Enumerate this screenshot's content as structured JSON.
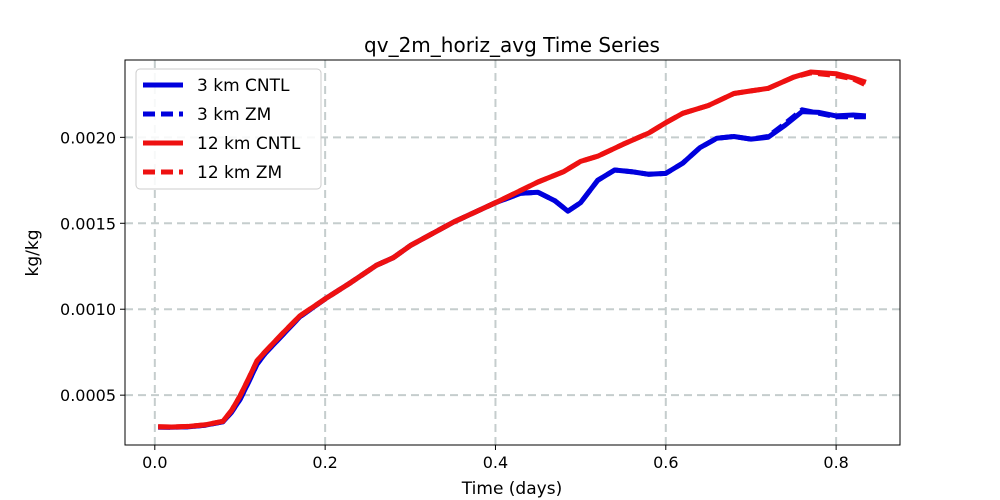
{
  "chart_data": {
    "type": "line",
    "title": "qv_2m_horiz_avg Time Series",
    "xlabel": "Time (days)",
    "ylabel": "kg/kg",
    "xlim": [
      -0.035,
      0.875
    ],
    "ylim": [
      0.00021,
      0.00245
    ],
    "xticks": [
      0.0,
      0.2,
      0.4,
      0.6,
      0.8
    ],
    "xtick_labels": [
      "0.0",
      "0.2",
      "0.4",
      "0.6",
      "0.8"
    ],
    "yticks": [
      0.0005,
      0.001,
      0.0015,
      0.002
    ],
    "ytick_labels": [
      "0.0005",
      "0.0010",
      "0.0015",
      "0.0020"
    ],
    "grid": true,
    "legend_position": "upper-left",
    "series": [
      {
        "name": "3 km CNTL",
        "color": "#0000dd",
        "dash": "solid",
        "x": [
          0.004,
          0.02,
          0.04,
          0.06,
          0.08,
          0.09,
          0.1,
          0.11,
          0.12,
          0.13,
          0.15,
          0.17,
          0.2,
          0.23,
          0.26,
          0.28,
          0.3,
          0.35,
          0.4,
          0.43,
          0.45,
          0.47,
          0.485,
          0.5,
          0.52,
          0.54,
          0.56,
          0.58,
          0.6,
          0.62,
          0.64,
          0.66,
          0.68,
          0.7,
          0.72,
          0.74,
          0.76,
          0.78,
          0.8,
          0.82,
          0.835
        ],
        "y": [
          0.000314,
          0.000313,
          0.000316,
          0.000326,
          0.000345,
          0.0004,
          0.000475,
          0.000575,
          0.00068,
          0.000745,
          0.00085,
          0.000955,
          0.00106,
          0.001155,
          0.001255,
          0.0013,
          0.00137,
          0.001505,
          0.00162,
          0.001675,
          0.00168,
          0.00163,
          0.00157,
          0.00162,
          0.00175,
          0.00181,
          0.0018,
          0.001785,
          0.00179,
          0.00185,
          0.00194,
          0.001995,
          0.002005,
          0.00199,
          0.002,
          0.00207,
          0.00215,
          0.002145,
          0.002125,
          0.00213,
          0.002125
        ]
      },
      {
        "name": "3 km ZM",
        "color": "#0000dd",
        "dash": "dashed",
        "x": [
          0.004,
          0.02,
          0.04,
          0.06,
          0.08,
          0.09,
          0.1,
          0.11,
          0.12,
          0.13,
          0.15,
          0.17,
          0.2,
          0.23,
          0.26,
          0.28,
          0.3,
          0.35,
          0.4,
          0.43,
          0.45,
          0.47,
          0.485,
          0.5,
          0.52,
          0.54,
          0.56,
          0.58,
          0.6,
          0.62,
          0.64,
          0.66,
          0.68,
          0.7,
          0.72,
          0.74,
          0.76,
          0.78,
          0.8,
          0.82,
          0.835
        ],
        "y": [
          0.000314,
          0.000313,
          0.000316,
          0.000326,
          0.000345,
          0.0004,
          0.000475,
          0.000575,
          0.00068,
          0.000745,
          0.00085,
          0.000955,
          0.00106,
          0.001155,
          0.001255,
          0.0013,
          0.00137,
          0.001505,
          0.00162,
          0.001675,
          0.00168,
          0.00163,
          0.00157,
          0.00162,
          0.00175,
          0.00181,
          0.0018,
          0.001785,
          0.00179,
          0.00185,
          0.00194,
          0.001995,
          0.002005,
          0.00199,
          0.002005,
          0.00208,
          0.00216,
          0.00214,
          0.00212,
          0.00212,
          0.00212
        ]
      },
      {
        "name": "12 km CNTL",
        "color": "#ee1111",
        "dash": "solid",
        "x": [
          0.004,
          0.02,
          0.04,
          0.06,
          0.08,
          0.09,
          0.1,
          0.11,
          0.12,
          0.13,
          0.15,
          0.17,
          0.2,
          0.23,
          0.26,
          0.28,
          0.3,
          0.35,
          0.4,
          0.45,
          0.48,
          0.5,
          0.52,
          0.55,
          0.58,
          0.6,
          0.62,
          0.65,
          0.68,
          0.7,
          0.72,
          0.75,
          0.77,
          0.8,
          0.82,
          0.835
        ],
        "y": [
          0.000316,
          0.000315,
          0.000318,
          0.000328,
          0.000348,
          0.00041,
          0.000495,
          0.000595,
          0.0007,
          0.000755,
          0.00086,
          0.00096,
          0.00106,
          0.001155,
          0.001255,
          0.0013,
          0.00137,
          0.001505,
          0.00162,
          0.00174,
          0.0018,
          0.00186,
          0.00189,
          0.00196,
          0.002025,
          0.002085,
          0.00214,
          0.002185,
          0.002255,
          0.00227,
          0.002285,
          0.00235,
          0.00238,
          0.00237,
          0.002345,
          0.00232
        ]
      },
      {
        "name": "12 km ZM",
        "color": "#ee1111",
        "dash": "dashed",
        "x": [
          0.004,
          0.02,
          0.04,
          0.06,
          0.08,
          0.09,
          0.1,
          0.11,
          0.12,
          0.13,
          0.15,
          0.17,
          0.2,
          0.23,
          0.26,
          0.28,
          0.3,
          0.35,
          0.4,
          0.45,
          0.48,
          0.5,
          0.52,
          0.55,
          0.58,
          0.6,
          0.62,
          0.65,
          0.68,
          0.7,
          0.72,
          0.75,
          0.77,
          0.8,
          0.82,
          0.835
        ],
        "y": [
          0.000316,
          0.000315,
          0.000318,
          0.000328,
          0.000348,
          0.00041,
          0.000495,
          0.000595,
          0.0007,
          0.000755,
          0.00086,
          0.00096,
          0.00106,
          0.001155,
          0.001255,
          0.0013,
          0.00137,
          0.001505,
          0.00162,
          0.00174,
          0.0018,
          0.00186,
          0.00189,
          0.00196,
          0.002025,
          0.002085,
          0.00214,
          0.002185,
          0.002255,
          0.00227,
          0.002285,
          0.00235,
          0.002375,
          0.00236,
          0.00234,
          0.002305
        ]
      }
    ]
  }
}
